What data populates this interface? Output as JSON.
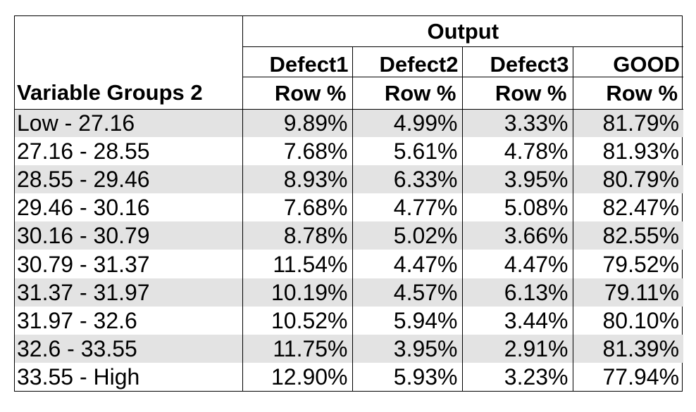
{
  "table": {
    "header_group": "Output",
    "row_header": "Variable Groups 2",
    "columns": [
      "Defect1",
      "Defect2",
      "Defect3",
      "GOOD"
    ],
    "subheader": "Row %",
    "rows": [
      {
        "label": "Low - 27.16",
        "values": [
          "9.89%",
          "4.99%",
          "3.33%",
          "81.79%"
        ]
      },
      {
        "label": "27.16 - 28.55",
        "values": [
          "7.68%",
          "5.61%",
          "4.78%",
          "81.93%"
        ]
      },
      {
        "label": "28.55 - 29.46",
        "values": [
          "8.93%",
          "6.33%",
          "3.95%",
          "80.79%"
        ]
      },
      {
        "label": "29.46 - 30.16",
        "values": [
          "7.68%",
          "4.77%",
          "5.08%",
          "82.47%"
        ]
      },
      {
        "label": "30.16 - 30.79",
        "values": [
          "8.78%",
          "5.02%",
          "3.66%",
          "82.55%"
        ]
      },
      {
        "label": "30.79 - 31.37",
        "values": [
          "11.54%",
          "4.47%",
          "4.47%",
          "79.52%"
        ]
      },
      {
        "label": "31.37 - 31.97",
        "values": [
          "10.19%",
          "4.57%",
          "6.13%",
          "79.11%"
        ]
      },
      {
        "label": "31.97 - 32.6",
        "values": [
          "10.52%",
          "5.94%",
          "3.44%",
          "80.10%"
        ]
      },
      {
        "label": "32.6 - 33.55",
        "values": [
          "11.75%",
          "3.95%",
          "2.91%",
          "81.39%"
        ]
      },
      {
        "label": "33.55 - High",
        "values": [
          "12.90%",
          "5.93%",
          "3.23%",
          "77.94%"
        ]
      }
    ]
  },
  "colors": {
    "shade": "#e3e3e3",
    "border": "#000000"
  }
}
